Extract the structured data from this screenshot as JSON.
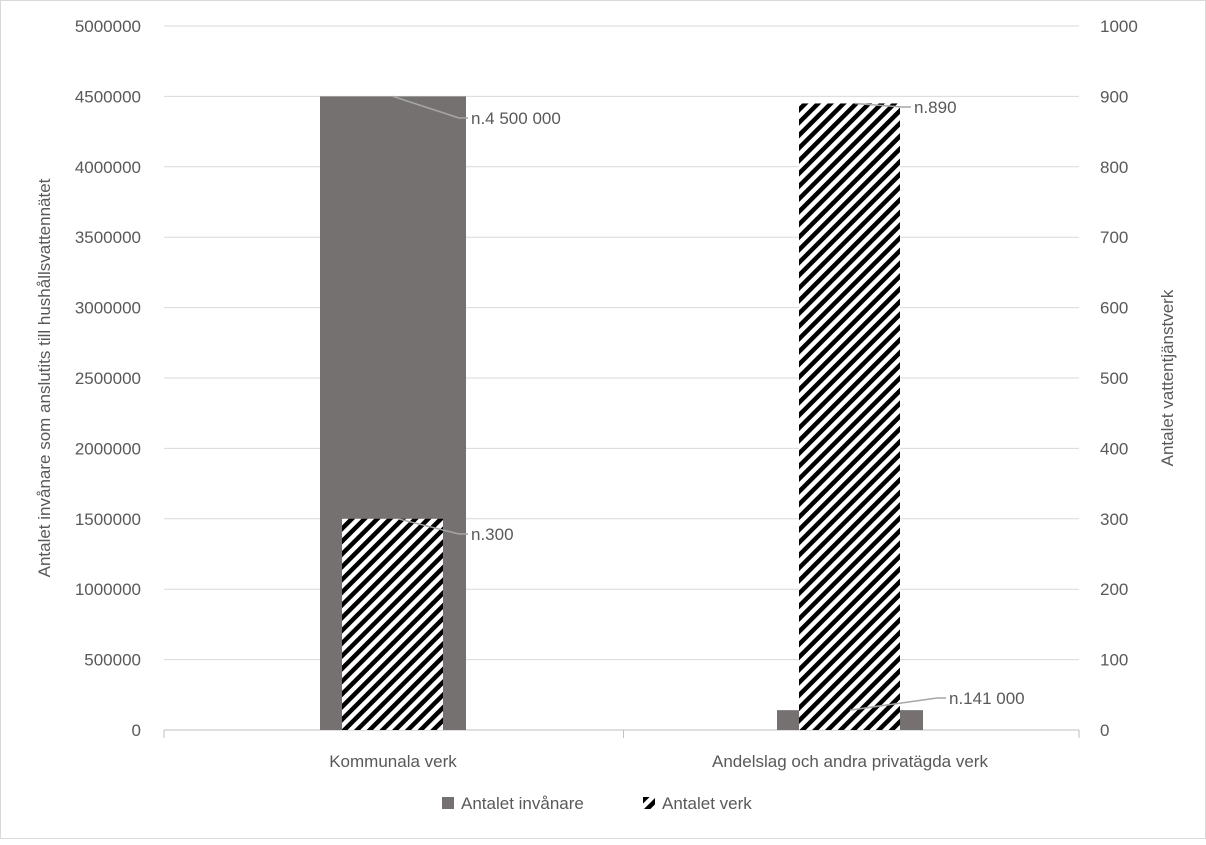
{
  "chart_data": {
    "type": "bar",
    "categories": [
      "Kommunala verk",
      "Andelslag och andra privatägda verk"
    ],
    "series": [
      {
        "name": "Antalet invånare",
        "axis": "left",
        "values": [
          4500000,
          141000
        ],
        "color": "#767171",
        "pattern": "solid",
        "data_labels": [
          "n.4 500 000",
          "n.141 000"
        ]
      },
      {
        "name": "Antalet verk",
        "axis": "right",
        "values": [
          300,
          890
        ],
        "color": "#000000",
        "pattern": "diagonal-stripes",
        "data_labels": [
          "n.300",
          "n.890"
        ]
      }
    ],
    "ylabel": "Antalet invånare som anslutits till hushållsvattennätet",
    "y2label": "Antalet vattentjänstverk",
    "ylim": [
      0,
      5000000
    ],
    "y2lim": [
      0,
      1000
    ],
    "yticks": [
      "0",
      "500000",
      "1000000",
      "1500000",
      "2000000",
      "2500000",
      "3000000",
      "3500000",
      "4000000",
      "4500000",
      "5000000"
    ],
    "y2ticks": [
      "0",
      "100",
      "200",
      "300",
      "400",
      "500",
      "600",
      "700",
      "800",
      "900",
      "1000"
    ],
    "grid": true,
    "legend": "bottom"
  }
}
